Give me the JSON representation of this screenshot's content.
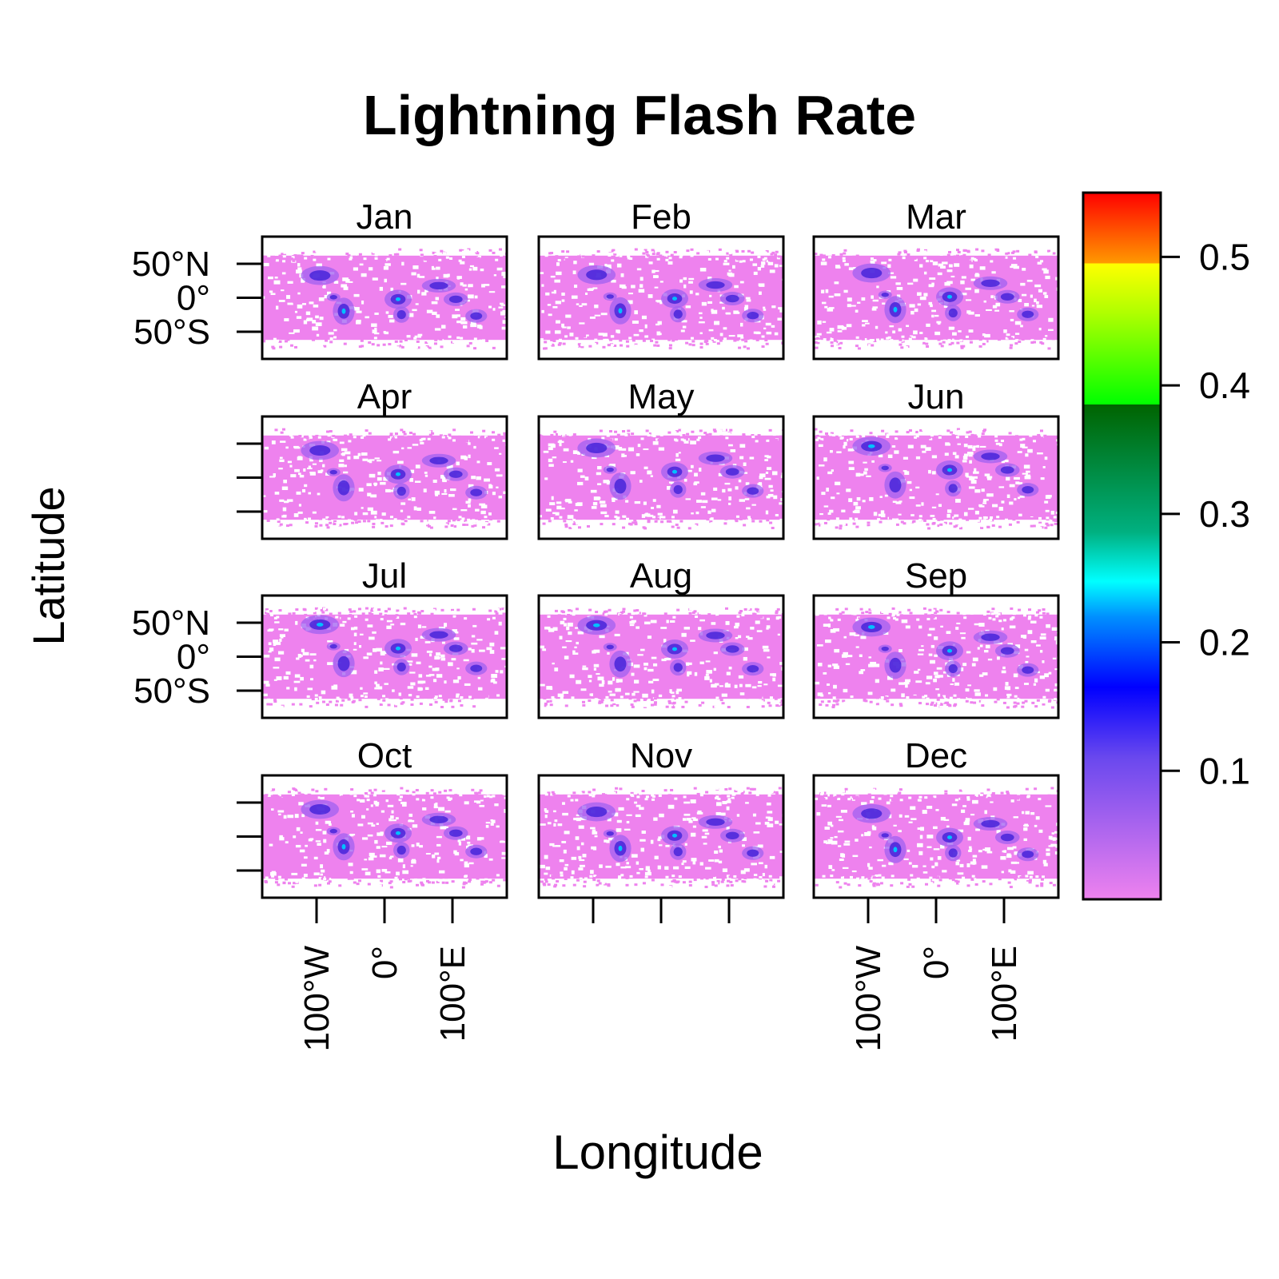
{
  "chart_data": {
    "type": "heatmap",
    "title": "Lightning Flash Rate",
    "xlabel": "Longitude",
    "ylabel": "Latitude",
    "panels": [
      "Jan",
      "Feb",
      "Mar",
      "Apr",
      "May",
      "Jun",
      "Jul",
      "Aug",
      "Sep",
      "Oct",
      "Nov",
      "Dec"
    ],
    "x_ticks": [
      -100,
      0,
      100
    ],
    "x_tick_labels": [
      "100°W",
      "0°",
      "100°E"
    ],
    "y_ticks": [
      50,
      0,
      -50
    ],
    "y_tick_labels": [
      "50°N",
      "0°",
      "50°S"
    ],
    "xlim": [
      -180,
      180
    ],
    "ylim": [
      -90,
      90
    ],
    "colorbar": {
      "range": [
        0,
        0.55
      ],
      "ticks": [
        0.1,
        0.2,
        0.3,
        0.4,
        0.5
      ],
      "tick_labels": [
        "0.1",
        "0.2",
        "0.3",
        "0.4",
        "0.5"
      ],
      "colors": [
        "#ee82ee",
        "#0000ff",
        "#00ffff",
        "#006400",
        "#00ff00",
        "#ffff00",
        "#ff0000"
      ]
    },
    "grid": false,
    "legend_placement": "right"
  }
}
